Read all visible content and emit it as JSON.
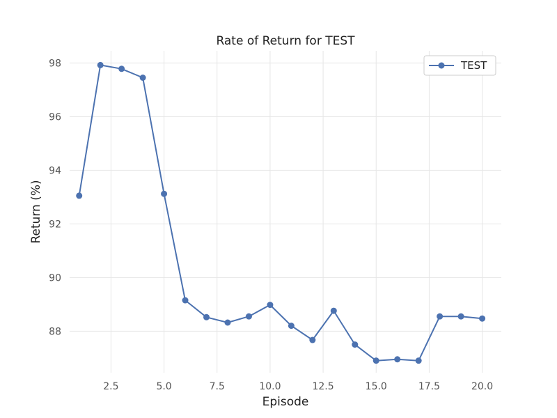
{
  "chart_data": {
    "type": "line",
    "title": "Rate of Return for TEST",
    "xlabel": "Episode",
    "ylabel": "Return (%)",
    "xlim": [
      0.55,
      20.9
    ],
    "ylim": [
      86.45,
      98.45
    ],
    "xticks": [
      2.5,
      5.0,
      7.5,
      10.0,
      12.5,
      15.0,
      17.5,
      20.0
    ],
    "xtick_labels": [
      "2.5",
      "5.0",
      "7.5",
      "10.0",
      "12.5",
      "15.0",
      "17.5",
      "20.0"
    ],
    "yticks": [
      88,
      90,
      92,
      94,
      96,
      98
    ],
    "ytick_labels": [
      "88",
      "90",
      "92",
      "94",
      "96",
      "98"
    ],
    "grid": true,
    "legend_position": "top-right",
    "series": [
      {
        "name": "TEST",
        "color": "#4c72b0",
        "marker": "circle",
        "x": [
          1,
          2,
          3,
          4,
          5,
          6,
          7,
          8,
          9,
          10,
          11,
          12,
          13,
          14,
          15,
          16,
          17,
          18,
          19,
          20
        ],
        "y": [
          93.05,
          97.92,
          97.78,
          97.45,
          93.12,
          89.15,
          88.52,
          88.32,
          88.55,
          88.98,
          88.2,
          87.67,
          88.76,
          87.5,
          86.9,
          86.95,
          86.9,
          88.55,
          88.55,
          88.47
        ]
      }
    ]
  }
}
